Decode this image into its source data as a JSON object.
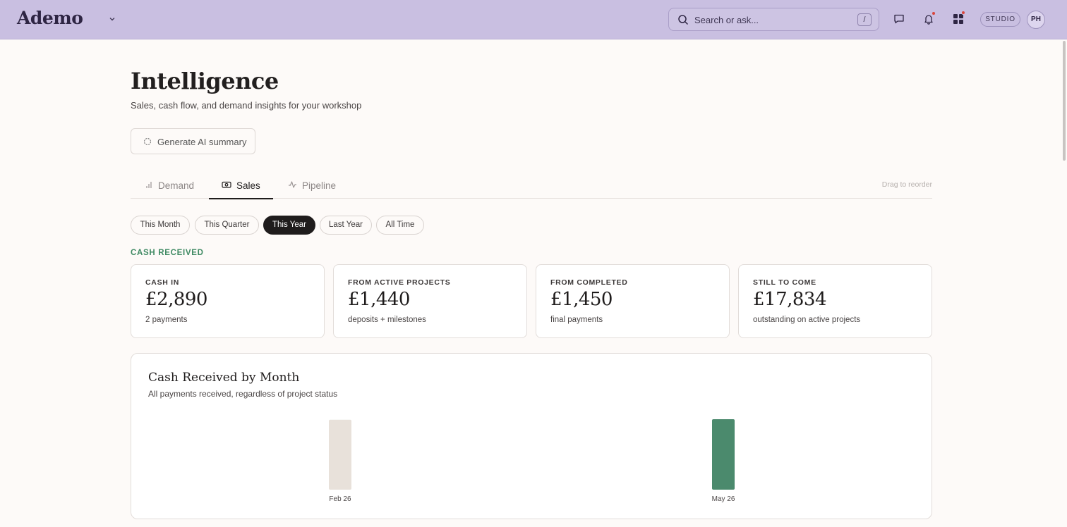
{
  "app": {
    "logo": "Ademo",
    "search_placeholder": "Search or ask...",
    "search_shortcut": "/",
    "workspace_badge": "STUDIO",
    "avatar_initials": "PH",
    "icons": [
      "search-icon",
      "chat-icon",
      "bell-icon",
      "apps-grid-icon",
      "chevron-down-icon"
    ],
    "notification_dot_color": "#d9453b"
  },
  "page": {
    "title": "Intelligence",
    "subtitle": "Sales, cash flow, and demand insights for your workshop",
    "ai_button_label": "Generate AI summary"
  },
  "tabs": {
    "items": [
      {
        "label": "Demand",
        "icon": "bar-chart-icon"
      },
      {
        "label": "Sales",
        "icon": "cash-icon"
      },
      {
        "label": "Pipeline",
        "icon": "activity-icon"
      }
    ],
    "active": "Sales",
    "hint": "Drag to reorder"
  },
  "periods": {
    "items": [
      "This Month",
      "This Quarter",
      "This Year",
      "Last Year",
      "All Time"
    ],
    "active": "This Year"
  },
  "section": {
    "label": "CASH RECEIVED"
  },
  "cards": [
    {
      "label": "CASH IN",
      "value": "£2,890",
      "note": "2 payments"
    },
    {
      "label": "FROM ACTIVE PROJECTS",
      "value": "£1,440",
      "note": "deposits + milestones"
    },
    {
      "label": "FROM COMPLETED",
      "value": "£1,450",
      "note": "final payments"
    },
    {
      "label": "STILL TO COME",
      "value": "£17,834",
      "note": "outstanding on active projects"
    }
  ],
  "chart": {
    "title": "Cash Received by Month",
    "subtitle": "All payments received, regardless of project status"
  },
  "chart_data": {
    "type": "bar",
    "categories": [
      "Feb 26",
      "May 26"
    ],
    "values": [
      1440,
      1450
    ],
    "bar_colors": [
      "#e8e1da",
      "#4b8a6d"
    ],
    "ylim": [
      0,
      1450
    ],
    "grid": false
  },
  "colors": {
    "topbar": "#c9bfe1",
    "accent_green": "#3f8a63",
    "active_pill": "#1f1c1c"
  }
}
